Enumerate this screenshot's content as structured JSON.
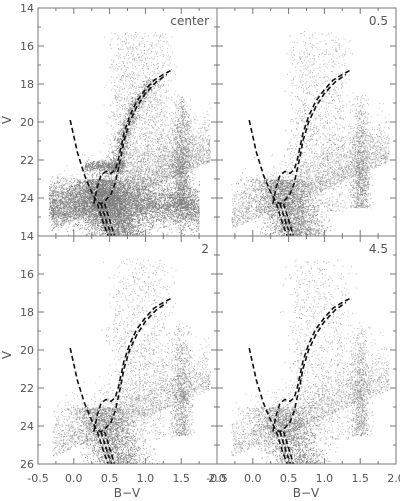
{
  "chart_data": {
    "type": "scatter",
    "layout": "2x2 panels, shared axes",
    "xlabel": "B−V",
    "ylabel": "V",
    "xlim": [
      -0.5,
      2.0
    ],
    "ylim": [
      26,
      14
    ],
    "y_inverted": true,
    "x_ticks": [
      "-0.5",
      "0.0",
      "0.5",
      "1.0",
      "1.5",
      "2.0"
    ],
    "x_tick_values": [
      -0.5,
      0.0,
      0.5,
      1.0,
      1.5,
      2.0
    ],
    "y_ticks": [
      "14",
      "16",
      "18",
      "20",
      "22",
      "24",
      "26"
    ],
    "y_tick_values": [
      14,
      16,
      18,
      20,
      22,
      24,
      26
    ],
    "marker_color": "#7a7a7a",
    "line_color": "#111111",
    "isochrones": [
      {
        "x": [
          -0.05,
          0.05,
          0.15,
          0.25,
          0.32,
          0.38,
          0.45,
          0.52,
          0.58,
          0.62,
          0.66,
          0.7,
          0.78,
          0.88,
          1.0,
          1.15,
          1.3
        ],
        "y": [
          19.9,
          21.6,
          22.8,
          23.7,
          24.2,
          24.3,
          24.1,
          23.8,
          23.2,
          22.5,
          21.8,
          21.0,
          20.0,
          19.2,
          18.5,
          17.9,
          17.5
        ]
      },
      {
        "x": [
          0.28,
          0.33,
          0.38,
          0.45,
          0.52,
          0.58,
          0.62,
          0.66,
          0.7,
          0.78,
          0.88,
          1.0,
          1.12,
          1.25,
          1.35
        ],
        "y": [
          24.3,
          23.4,
          22.8,
          22.6,
          22.7,
          22.5,
          22.0,
          21.3,
          20.6,
          19.7,
          18.9,
          18.3,
          17.8,
          17.5,
          17.3
        ]
      }
    ],
    "main_sequence_tails": [
      {
        "x": [
          0.38,
          0.42,
          0.47,
          0.52,
          0.56
        ],
        "y": [
          24.3,
          24.8,
          25.4,
          25.9,
          26.4
        ]
      },
      {
        "x": [
          0.33,
          0.37,
          0.42,
          0.47,
          0.51
        ],
        "y": [
          24.3,
          24.8,
          25.4,
          25.9,
          26.4
        ]
      },
      {
        "x": [
          0.43,
          0.47,
          0.52,
          0.56,
          0.6
        ],
        "y": [
          24.3,
          24.8,
          25.4,
          25.9,
          26.4
        ]
      }
    ],
    "panels": [
      {
        "label": "center",
        "density": 1.0,
        "red_clump": true
      },
      {
        "label": "0.5",
        "density": 0.6,
        "red_clump": false
      },
      {
        "label": "2",
        "density": 0.5,
        "red_clump": false
      },
      {
        "label": "4.5",
        "density": 0.4,
        "red_clump": false
      }
    ]
  }
}
